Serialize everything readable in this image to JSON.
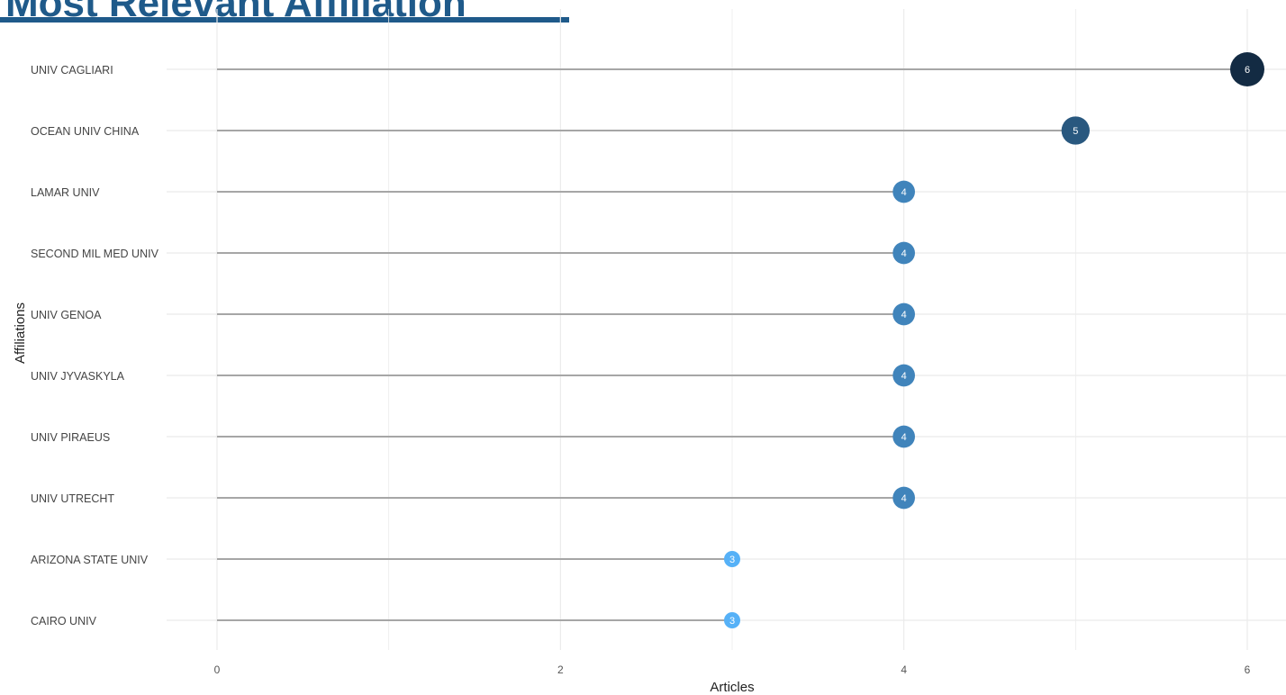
{
  "page_title": "Most Relevant Affiliation",
  "chart_data": {
    "type": "lollipop",
    "xlabel": "Articles",
    "ylabel": "Affiliations",
    "xlim": [
      0,
      6.2
    ],
    "xticks": [
      0,
      2,
      4,
      6
    ],
    "grid": true,
    "categories": [
      "UNIV CAGLIARI",
      "OCEAN UNIV CHINA",
      "LAMAR UNIV",
      "SECOND MIL MED UNIV",
      "UNIV GENOA",
      "UNIV JYVASKYLA",
      "UNIV PIRAEUS",
      "UNIV UTRECHT",
      "ARIZONA STATE UNIV",
      "CAIRO UNIV"
    ],
    "values": [
      6,
      5,
      4,
      4,
      4,
      4,
      4,
      4,
      3,
      3
    ],
    "colors": {
      "low": "#56b1f7",
      "high": "#132b43",
      "stem": "#a6a6a6",
      "grid": "#ebebeb"
    }
  }
}
